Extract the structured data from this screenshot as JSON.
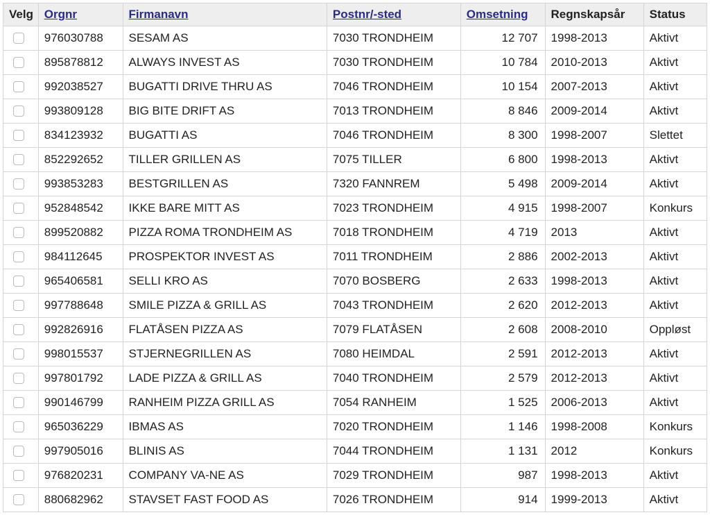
{
  "columns": {
    "velg": {
      "label": "Velg",
      "sortable": false
    },
    "orgnr": {
      "label": "Orgnr",
      "sortable": true
    },
    "firmanavn": {
      "label": "Firmanavn",
      "sortable": true
    },
    "postnr": {
      "label": "Postnr/-sted",
      "sortable": true
    },
    "omsetning": {
      "label": "Omsetning",
      "sortable": true
    },
    "regnskap": {
      "label": "Regnskapsår",
      "sortable": false
    },
    "status": {
      "label": "Status",
      "sortable": false
    }
  },
  "rows": [
    {
      "orgnr": "976030788",
      "firmanavn": "SESAM AS",
      "postnr": "7030 TRONDHEIM",
      "omsetning": "12 707",
      "regnskap": "1998-2013",
      "status": "Aktivt"
    },
    {
      "orgnr": "895878812",
      "firmanavn": "ALWAYS INVEST AS",
      "postnr": "7030 TRONDHEIM",
      "omsetning": "10 784",
      "regnskap": "2010-2013",
      "status": "Aktivt"
    },
    {
      "orgnr": "992038527",
      "firmanavn": "BUGATTI DRIVE THRU AS",
      "postnr": "7046 TRONDHEIM",
      "omsetning": "10 154",
      "regnskap": "2007-2013",
      "status": "Aktivt"
    },
    {
      "orgnr": "993809128",
      "firmanavn": "BIG BITE DRIFT AS",
      "postnr": "7013 TRONDHEIM",
      "omsetning": "8 846",
      "regnskap": "2009-2014",
      "status": "Aktivt"
    },
    {
      "orgnr": "834123932",
      "firmanavn": "BUGATTI AS",
      "postnr": "7046 TRONDHEIM",
      "omsetning": "8 300",
      "regnskap": "1998-2007",
      "status": "Slettet"
    },
    {
      "orgnr": "852292652",
      "firmanavn": "TILLER GRILLEN AS",
      "postnr": "7075 TILLER",
      "omsetning": "6 800",
      "regnskap": "1998-2013",
      "status": "Aktivt"
    },
    {
      "orgnr": "993853283",
      "firmanavn": "BESTGRILLEN AS",
      "postnr": "7320 FANNREM",
      "omsetning": "5 498",
      "regnskap": "2009-2014",
      "status": "Aktivt"
    },
    {
      "orgnr": "952848542",
      "firmanavn": "IKKE BARE MITT AS",
      "postnr": "7023 TRONDHEIM",
      "omsetning": "4 915",
      "regnskap": "1998-2007",
      "status": "Konkurs"
    },
    {
      "orgnr": "899520882",
      "firmanavn": "PIZZA ROMA TRONDHEIM AS",
      "postnr": "7018 TRONDHEIM",
      "omsetning": "4 719",
      "regnskap": "2013",
      "status": "Aktivt"
    },
    {
      "orgnr": "984112645",
      "firmanavn": "PROSPEKTOR INVEST AS",
      "postnr": "7011 TRONDHEIM",
      "omsetning": "2 886",
      "regnskap": "2002-2013",
      "status": "Aktivt"
    },
    {
      "orgnr": "965406581",
      "firmanavn": "SELLI KRO AS",
      "postnr": "7070 BOSBERG",
      "omsetning": "2 633",
      "regnskap": "1998-2013",
      "status": "Aktivt"
    },
    {
      "orgnr": "997788648",
      "firmanavn": "SMILE PIZZA & GRILL AS",
      "postnr": "7043 TRONDHEIM",
      "omsetning": "2 620",
      "regnskap": "2012-2013",
      "status": "Aktivt"
    },
    {
      "orgnr": "992826916",
      "firmanavn": "FLATÅSEN PIZZA AS",
      "postnr": "7079 FLATÅSEN",
      "omsetning": "2 608",
      "regnskap": "2008-2010",
      "status": "Oppløst"
    },
    {
      "orgnr": "998015537",
      "firmanavn": "STJERNEGRILLEN AS",
      "postnr": "7080 HEIMDAL",
      "omsetning": "2 591",
      "regnskap": "2012-2013",
      "status": "Aktivt"
    },
    {
      "orgnr": "997801792",
      "firmanavn": "LADE PIZZA & GRILL AS",
      "postnr": "7040 TRONDHEIM",
      "omsetning": "2 579",
      "regnskap": "2012-2013",
      "status": "Aktivt"
    },
    {
      "orgnr": "990146799",
      "firmanavn": "RANHEIM PIZZA GRILL AS",
      "postnr": "7054 RANHEIM",
      "omsetning": "1 525",
      "regnskap": "2006-2013",
      "status": "Aktivt"
    },
    {
      "orgnr": "965036229",
      "firmanavn": "IBMAS AS",
      "postnr": "7020 TRONDHEIM",
      "omsetning": "1 146",
      "regnskap": "1998-2008",
      "status": "Konkurs"
    },
    {
      "orgnr": "997905016",
      "firmanavn": "BLINIS AS",
      "postnr": "7044 TRONDHEIM",
      "omsetning": "1 131",
      "regnskap": "2012",
      "status": "Konkurs"
    },
    {
      "orgnr": "976820231",
      "firmanavn": "COMPANY VA-NE AS",
      "postnr": "7029 TRONDHEIM",
      "omsetning": "987",
      "regnskap": "1998-2013",
      "status": "Aktivt"
    },
    {
      "orgnr": "880682962",
      "firmanavn": "STAVSET FAST FOOD AS",
      "postnr": "7026 TRONDHEIM",
      "omsetning": "914",
      "regnskap": "1999-2013",
      "status": "Aktivt"
    }
  ]
}
